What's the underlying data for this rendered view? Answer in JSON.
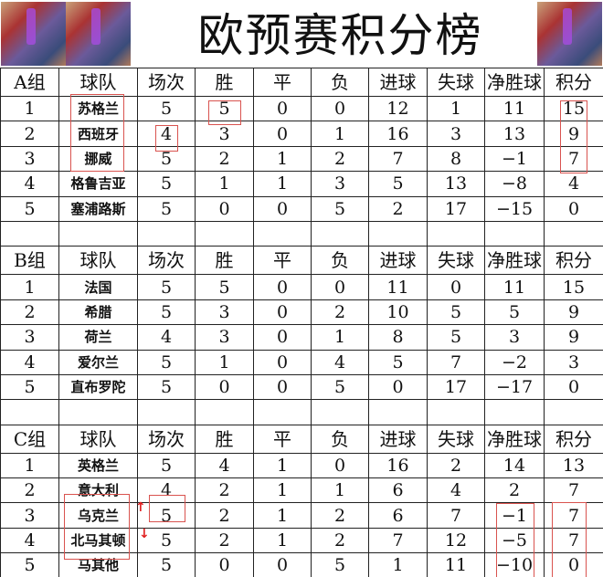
{
  "title": "欧预赛积分榜",
  "columns": [
    "球队",
    "场次",
    "胜",
    "平",
    "负",
    "进球",
    "失球",
    "净胜球",
    "积分"
  ],
  "groups": [
    {
      "label": "A组",
      "rows": [
        [
          "1",
          "苏格兰",
          "5",
          "5",
          "0",
          "0",
          "12",
          "1",
          "11",
          "15"
        ],
        [
          "2",
          "西班牙",
          "4",
          "3",
          "0",
          "1",
          "16",
          "3",
          "13",
          "9"
        ],
        [
          "3",
          "挪威",
          "5",
          "2",
          "1",
          "2",
          "7",
          "8",
          "−1",
          "7"
        ],
        [
          "4",
          "格鲁吉亚",
          "5",
          "1",
          "1",
          "3",
          "5",
          "13",
          "−8",
          "4"
        ],
        [
          "5",
          "塞浦路斯",
          "5",
          "0",
          "0",
          "5",
          "2",
          "17",
          "−15",
          "0"
        ]
      ]
    },
    {
      "label": "B组",
      "rows": [
        [
          "1",
          "法国",
          "5",
          "5",
          "0",
          "0",
          "11",
          "0",
          "11",
          "15"
        ],
        [
          "2",
          "希腊",
          "5",
          "3",
          "0",
          "2",
          "10",
          "5",
          "5",
          "9"
        ],
        [
          "3",
          "荷兰",
          "4",
          "3",
          "0",
          "1",
          "8",
          "5",
          "3",
          "9"
        ],
        [
          "4",
          "爱尔兰",
          "5",
          "1",
          "0",
          "4",
          "5",
          "7",
          "−2",
          "3"
        ],
        [
          "5",
          "直布罗陀",
          "5",
          "0",
          "0",
          "5",
          "0",
          "17",
          "−17",
          "0"
        ]
      ]
    },
    {
      "label": "C组",
      "rows": [
        [
          "1",
          "英格兰",
          "5",
          "4",
          "1",
          "0",
          "16",
          "2",
          "14",
          "13"
        ],
        [
          "2",
          "意大利",
          "4",
          "2",
          "1",
          "1",
          "6",
          "4",
          "2",
          "7"
        ],
        [
          "3",
          "乌克兰",
          "5",
          "2",
          "1",
          "2",
          "6",
          "7",
          "−1",
          "7"
        ],
        [
          "4",
          "北马其顿",
          "5",
          "2",
          "1",
          "2",
          "7",
          "12",
          "−5",
          "7"
        ],
        [
          "5",
          "马其他",
          "5",
          "0",
          "0",
          "5",
          "1",
          "11",
          "−10",
          "0"
        ]
      ]
    }
  ],
  "annotations": {
    "highlight_color": "#d9534f",
    "arrow_up": "↑",
    "arrow_down": "↓"
  }
}
